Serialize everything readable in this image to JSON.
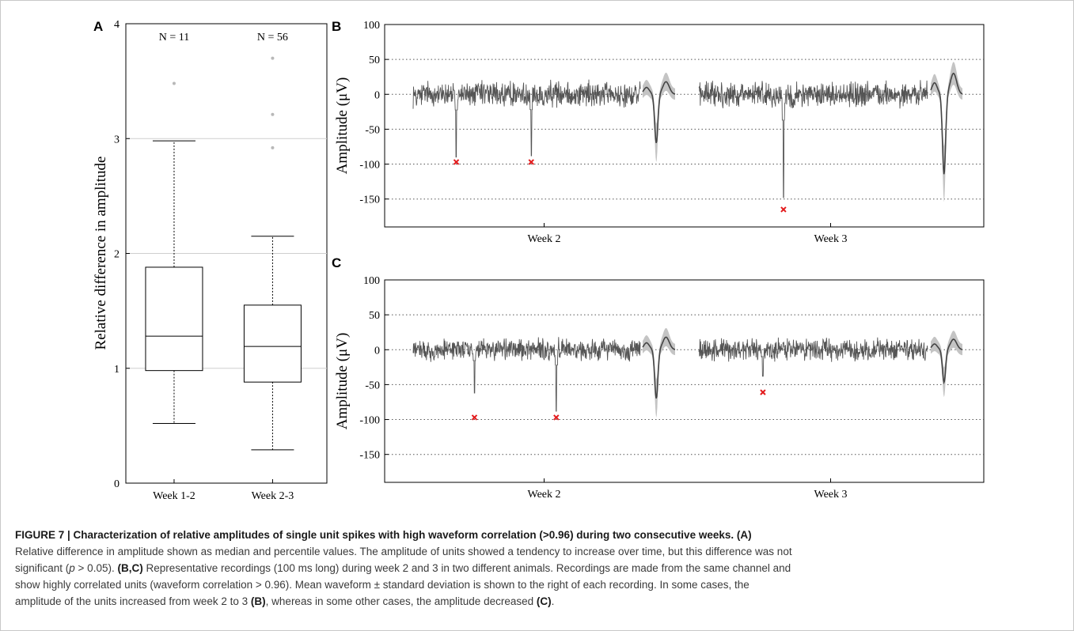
{
  "chart_data": [
    {
      "type": "box",
      "panel": "A",
      "ylabel": "Relative difference in amplitude",
      "ylim": [
        0,
        4
      ],
      "yticks": [
        "0",
        "1",
        "2",
        "3",
        "4"
      ],
      "grid": "horizontal",
      "categories": [
        "Week 1-2",
        "Week 2-3"
      ],
      "n_labels": [
        "N = 11",
        "N = 56"
      ],
      "boxes": [
        {
          "whisker_low": 0.52,
          "q1": 0.98,
          "median": 1.28,
          "q3": 1.88,
          "whisker_high": 2.98,
          "outliers": [
            3.48
          ]
        },
        {
          "whisker_low": 0.29,
          "q1": 0.88,
          "median": 1.19,
          "q3": 1.55,
          "whisker_high": 2.15,
          "outliers": [
            2.92,
            3.21,
            3.7
          ]
        }
      ]
    },
    {
      "type": "line",
      "panel": "B",
      "ylabel": "Amplitude (μV)",
      "ylim": [
        -190,
        100
      ],
      "yticks": [
        "100",
        "50",
        "0",
        "-50",
        "-100",
        "-150"
      ],
      "grid": "horizontal dotted",
      "sections": [
        "Week 2",
        "Week 3"
      ],
      "marked_spikes": [
        {
          "week": "Week 2",
          "position": 0.19,
          "peak": -90
        },
        {
          "week": "Week 2",
          "position": 0.52,
          "peak": -88
        },
        {
          "week": "Week 3",
          "position": 0.37,
          "peak": -148
        }
      ],
      "marker_values": [
        -97,
        -97,
        -165
      ],
      "mean_waveform_min": [
        -70,
        -115
      ],
      "mean_waveform_max": [
        18,
        30
      ],
      "noise_level": 15
    },
    {
      "type": "line",
      "panel": "C",
      "ylabel": "Amplitude (μV)",
      "ylim": [
        -190,
        100
      ],
      "yticks": [
        "100",
        "50",
        "0",
        "-50",
        "-100",
        "-150"
      ],
      "grid": "horizontal dotted",
      "sections": [
        "Week 2",
        "Week 3"
      ],
      "marked_spikes": [
        {
          "week": "Week 2",
          "position": 0.27,
          "peak": -62
        },
        {
          "week": "Week 2",
          "position": 0.63,
          "peak": -88
        },
        {
          "week": "Week 3",
          "position": 0.28,
          "peak": -38
        }
      ],
      "marker_values": [
        -97,
        -97,
        -61
      ],
      "mean_waveform_min": [
        -70,
        -47
      ],
      "mean_waveform_max": [
        18,
        15
      ],
      "noise_level": 13
    }
  ],
  "colors": {
    "trace": "#555555",
    "band": "#c4c4c4",
    "marker": "#e31a1c",
    "grid": "#bdbdbd",
    "box": "#000000",
    "outlier": "#b8b8b8"
  },
  "caption": {
    "figure_title": "FIGURE 7 | Characterization of relative amplitudes of single unit spikes with high waveform correlation (>0.96) during two consecutive weeks. (A)",
    "line1": "Relative difference in amplitude shown as median and percentile values. The amplitude of units showed a tendency to increase over time, but this difference was not",
    "line2_a": "significant (",
    "line2_p": "p",
    "line2_b": " > 0.05). ",
    "line2_bold": "(B,C)",
    "line2_c": " Representative recordings (100 ms long) during week 2 and 3 in two different animals. Recordings are made from the same channel and",
    "line3": "show highly correlated units (waveform correlation > 0.96). Mean waveform ± standard deviation is shown to the right of each recording. In some cases, the",
    "line4_a": "amplitude of the units increased from week 2 to 3 ",
    "line4_b_bold": "(B)",
    "line4_c": ", whereas in some other cases, the amplitude decreased ",
    "line4_d_bold": "(C)",
    "line4_e": "."
  }
}
